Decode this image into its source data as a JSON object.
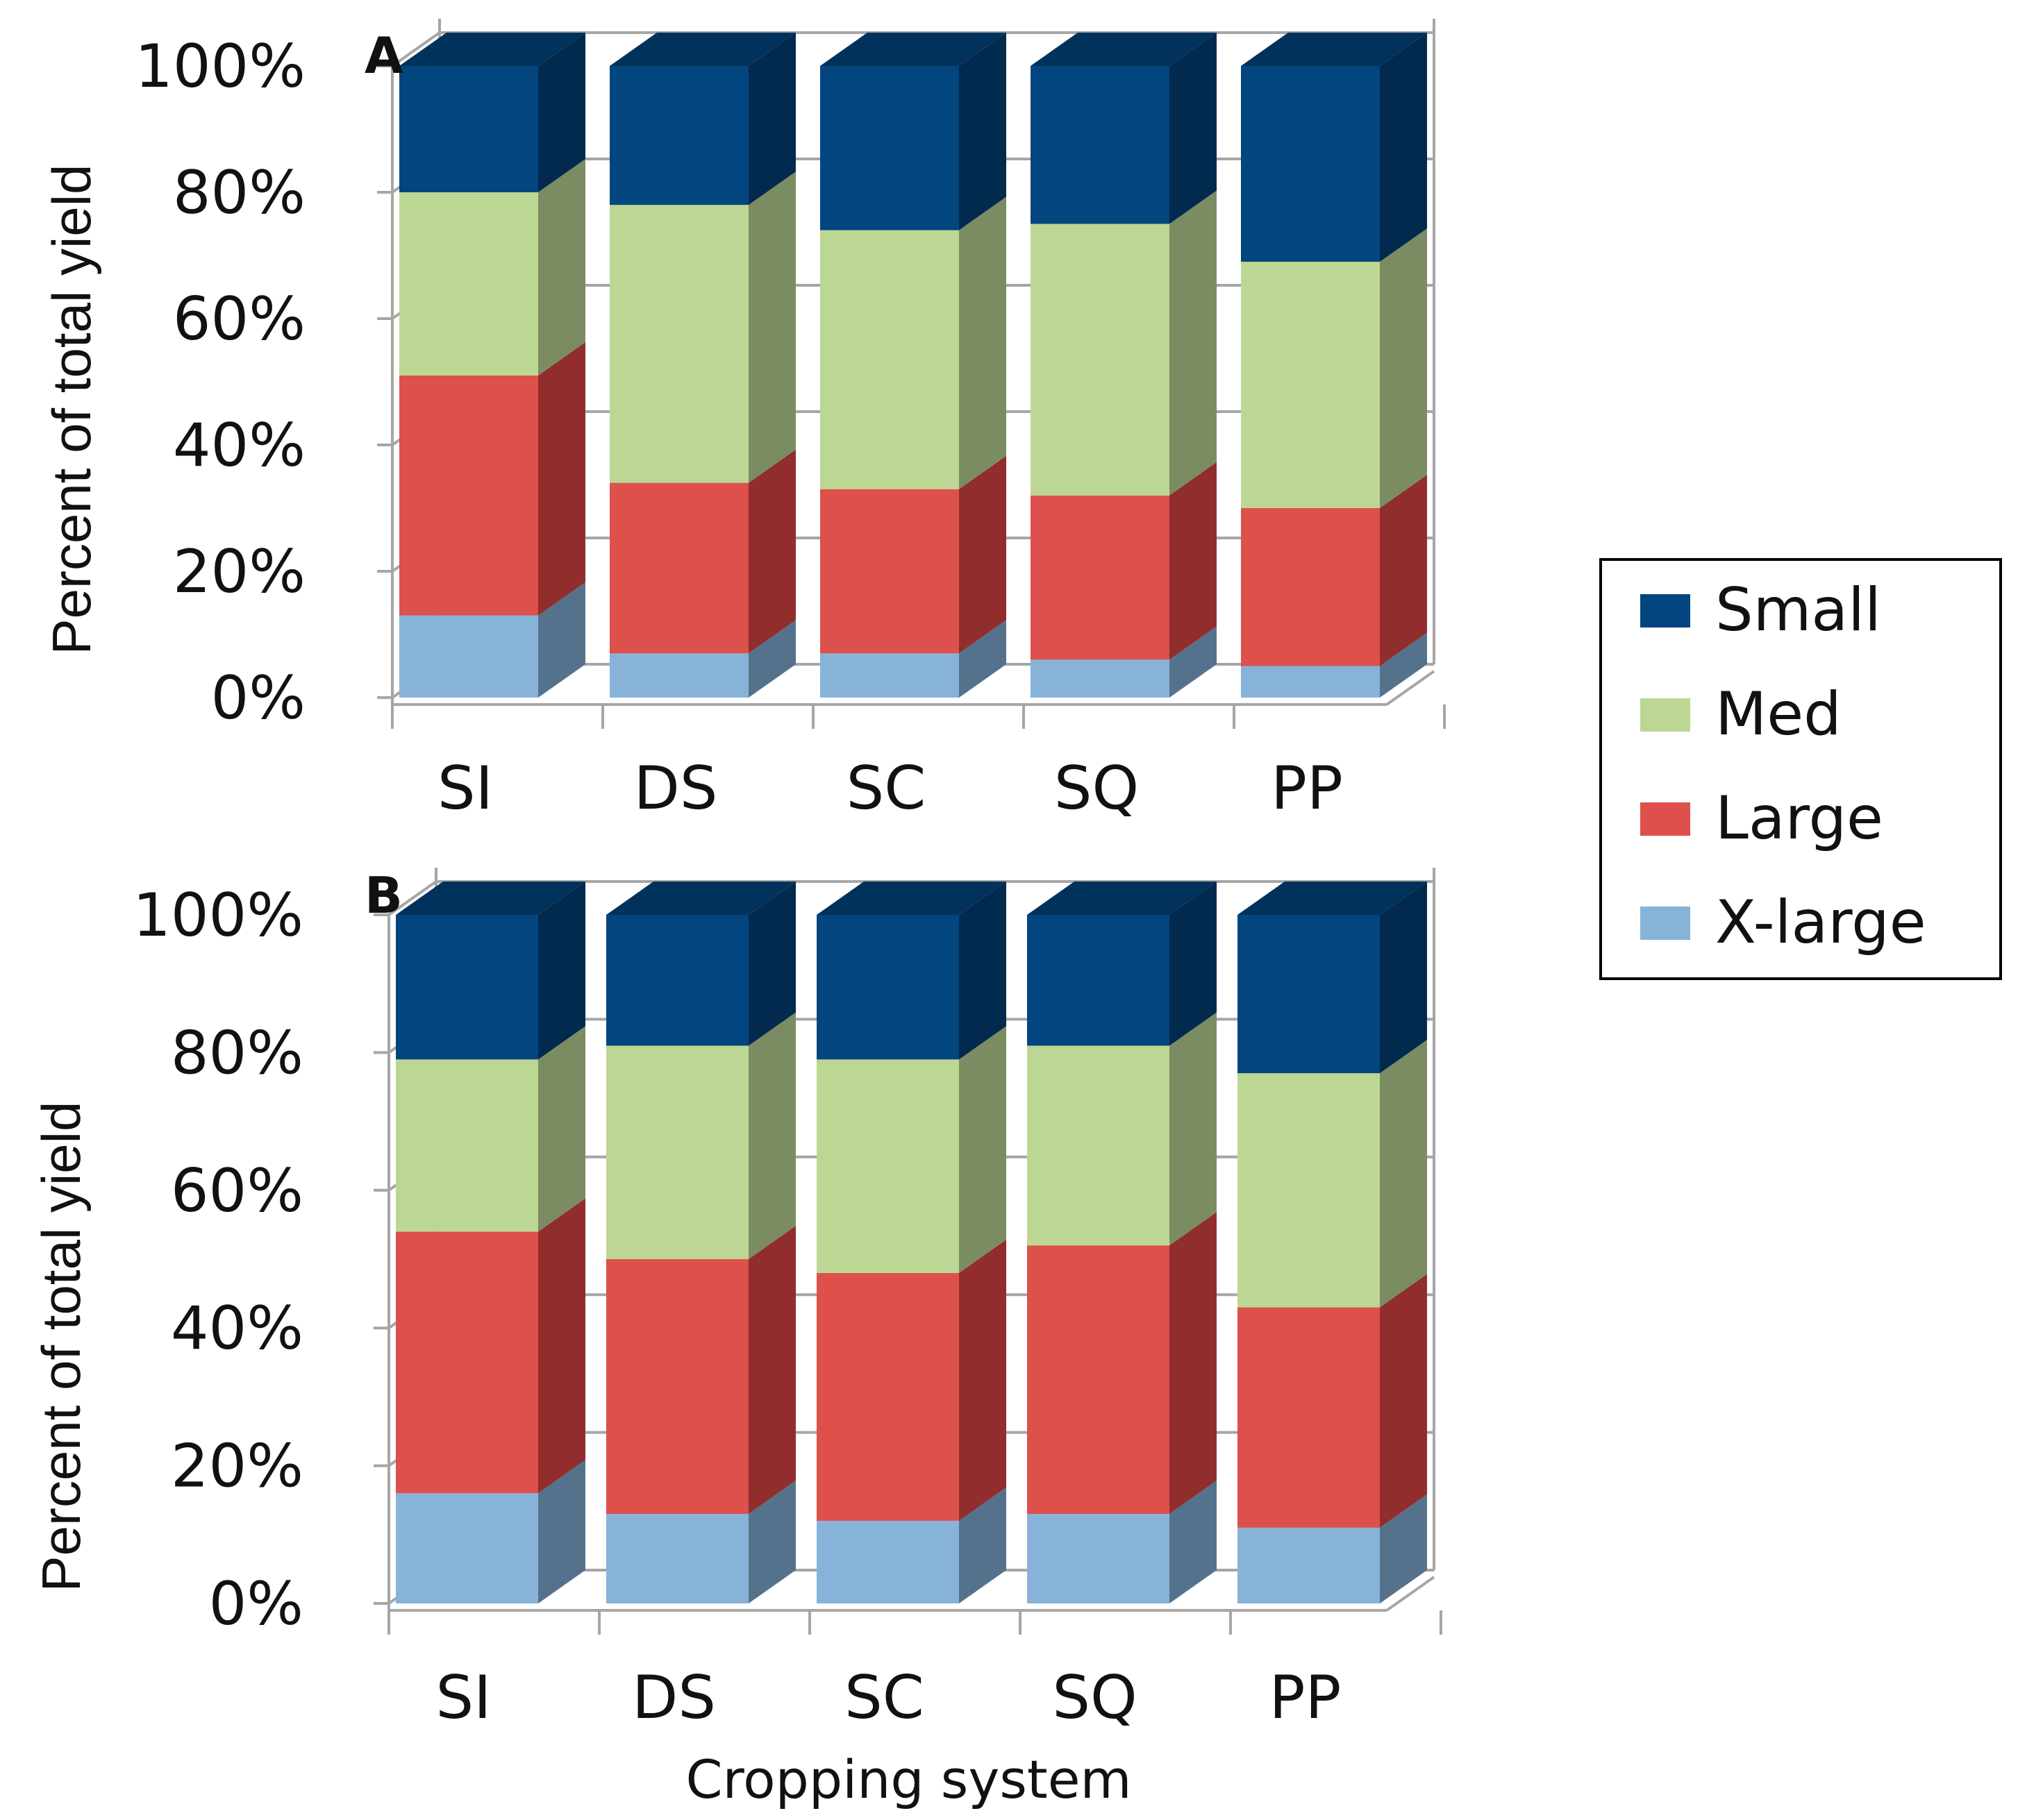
{
  "chart_data": [
    {
      "type": "bar",
      "stacked": true,
      "three_d": true,
      "panel_label": "A",
      "title": "",
      "xlabel": "",
      "ylabel": "Percent of total yield",
      "ylim": [
        0,
        100
      ],
      "yticks": [
        "0%",
        "20%",
        "40%",
        "60%",
        "80%",
        "100%"
      ],
      "categories": [
        "SI",
        "DS",
        "SC",
        "SQ",
        "PP"
      ],
      "series": [
        {
          "name": "X-large",
          "values": [
            13,
            7,
            7,
            6,
            5
          ]
        },
        {
          "name": "Large",
          "values": [
            38,
            27,
            26,
            26,
            25
          ]
        },
        {
          "name": "Med",
          "values": [
            29,
            44,
            41,
            43,
            39
          ]
        },
        {
          "name": "Small",
          "values": [
            20,
            22,
            26,
            25,
            31
          ]
        }
      ],
      "grid": true
    },
    {
      "type": "bar",
      "stacked": true,
      "three_d": true,
      "panel_label": "B",
      "title": "",
      "xlabel": "Cropping system",
      "ylabel": "Percent of total yield",
      "ylim": [
        0,
        100
      ],
      "yticks": [
        "0%",
        "20%",
        "40%",
        "60%",
        "80%",
        "100%"
      ],
      "categories": [
        "SI",
        "DS",
        "SC",
        "SQ",
        "PP"
      ],
      "series": [
        {
          "name": "X-large",
          "values": [
            16,
            13,
            12,
            13,
            11
          ]
        },
        {
          "name": "Large",
          "values": [
            38,
            37,
            36,
            39,
            32
          ]
        },
        {
          "name": "Med",
          "values": [
            25,
            31,
            31,
            29,
            34
          ]
        },
        {
          "name": "Small",
          "values": [
            21,
            19,
            21,
            19,
            23
          ]
        }
      ],
      "grid": true
    }
  ],
  "legend": {
    "placement": "right",
    "items": [
      {
        "label": "Small",
        "color": "#03457f"
      },
      {
        "label": "Med",
        "color": "#bcd794"
      },
      {
        "label": "Large",
        "color": "#dd504b"
      },
      {
        "label": "X-large",
        "color": "#88b3d8"
      }
    ]
  },
  "colors": {
    "Small": {
      "front": "#03457f",
      "side": "#022a4e",
      "top": "#01325c"
    },
    "Med": {
      "front": "#bcd794",
      "side": "#7b8c62"
    },
    "Large": {
      "front": "#dd504b",
      "side": "#912e2d"
    },
    "X-large": {
      "front": "#88b3d8",
      "side": "#55728d"
    }
  }
}
